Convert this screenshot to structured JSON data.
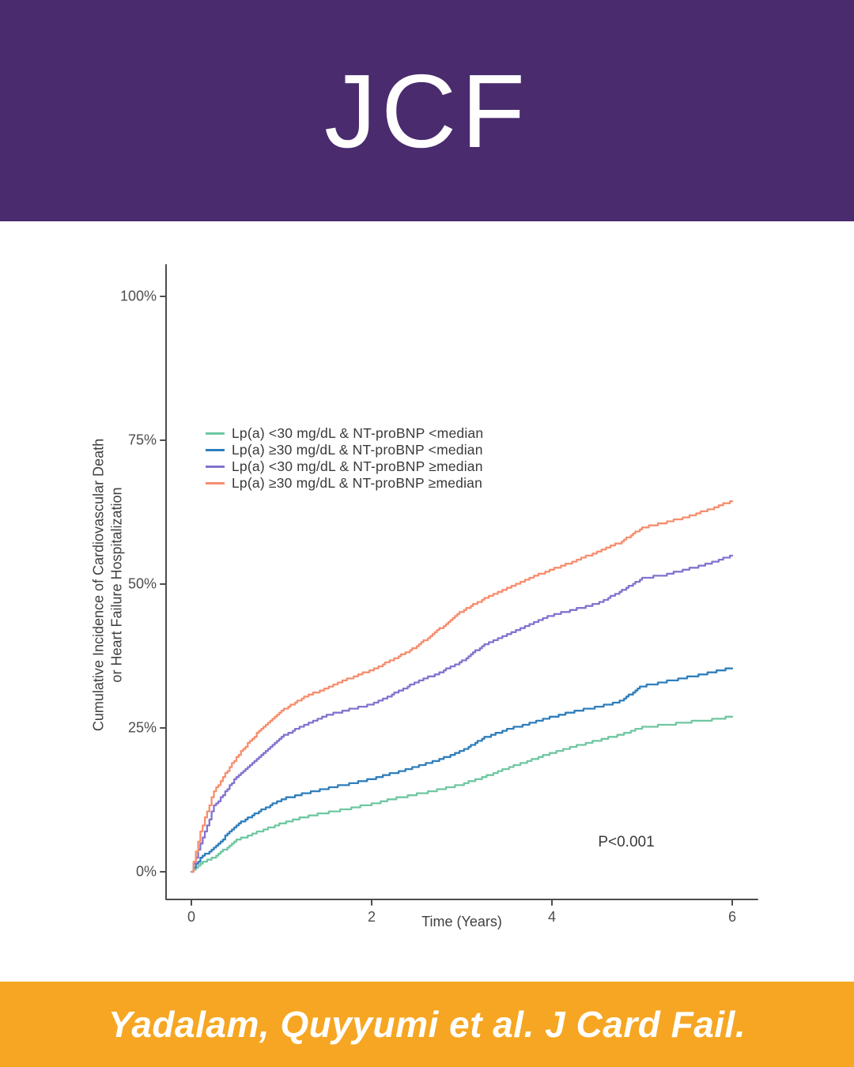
{
  "header": {
    "logo_text": "JCF",
    "background_color": "#4A2B6E"
  },
  "footer": {
    "citation": "Yadalam, Quyyumi et al. J Card Fail.",
    "background_color": "#F6A622"
  },
  "chart_data": {
    "type": "line",
    "subtype": "cumulative-incidence-kaplan-meier",
    "title": "",
    "xlabel": "Time (Years)",
    "ylabel": "Cumulative Incidence of Cardiovascular Death or Heart Failure Hospitalization",
    "ylabel_lines": [
      "Cumulative Incidence of Cardiovascular Death",
      "or Heart Failure Hospitalization"
    ],
    "annotation": "P<0.001",
    "grid": false,
    "legend_position": "upper-left-inside",
    "xlim": [
      0,
      6.3
    ],
    "ylim": [
      0,
      100
    ],
    "x_ticks": [
      0,
      2,
      4,
      6
    ],
    "x_tick_labels": [
      "0",
      "2",
      "4",
      "6"
    ],
    "y_ticks": [
      0,
      25,
      50,
      75,
      100
    ],
    "y_tick_labels": [
      "0%",
      "25%",
      "50%",
      "75%",
      "100%"
    ],
    "axis_color": "#4d4d4d",
    "x": [
      0,
      0.1,
      0.25,
      0.5,
      0.75,
      1.0,
      1.25,
      1.5,
      1.75,
      2.0,
      2.25,
      2.5,
      2.75,
      3.0,
      3.25,
      3.5,
      3.75,
      4.0,
      4.25,
      4.5,
      4.75,
      5.0,
      5.25,
      5.5,
      5.75,
      6.0
    ],
    "y_unit": "percent",
    "series": [
      {
        "name": "Lp(a) <30 mg/dL & NT-proBNP <median",
        "color": "#6FC7A1",
        "values": [
          0,
          1.5,
          2.5,
          5.5,
          7.0,
          8.4,
          9.5,
          10.3,
          11.0,
          11.8,
          12.7,
          13.5,
          14.3,
          15.2,
          16.5,
          18.0,
          19.3,
          20.7,
          21.8,
          22.8,
          23.8,
          25.1,
          25.5,
          26.0,
          26.4,
          27.0
        ]
      },
      {
        "name": "Lp(a) ≥30 mg/dL & NT-proBNP <median",
        "color": "#2E7EBC",
        "values": [
          0,
          2.5,
          4.1,
          8.2,
          10.5,
          12.6,
          13.6,
          14.5,
          15.3,
          16.1,
          17.2,
          18.3,
          19.5,
          21.0,
          23.3,
          24.7,
          25.8,
          26.9,
          27.9,
          28.6,
          29.6,
          32.3,
          33.0,
          33.8,
          34.6,
          35.5
        ]
      },
      {
        "name": "Lp(a) <30 mg/dL & NT-proBNP ≥median",
        "color": "#8273CE",
        "values": [
          0,
          5.0,
          11.4,
          16.5,
          20.0,
          23.5,
          25.5,
          27.2,
          28.2,
          29.1,
          31.0,
          33.0,
          34.6,
          36.6,
          39.5,
          41.3,
          43.0,
          44.6,
          45.6,
          46.6,
          48.6,
          51.0,
          51.6,
          52.6,
          53.6,
          55.0
        ]
      },
      {
        "name": "Lp(a) ≥30 mg/dL & NT-proBNP ≥median",
        "color": "#F68E6E",
        "values": [
          0,
          7.0,
          14.0,
          20.0,
          24.5,
          28.0,
          30.3,
          32.0,
          33.6,
          35.1,
          37.0,
          39.2,
          42.2,
          45.3,
          47.5,
          49.2,
          51.0,
          52.6,
          54.0,
          55.6,
          57.2,
          59.8,
          60.7,
          61.7,
          63.0,
          64.5
        ]
      }
    ]
  }
}
